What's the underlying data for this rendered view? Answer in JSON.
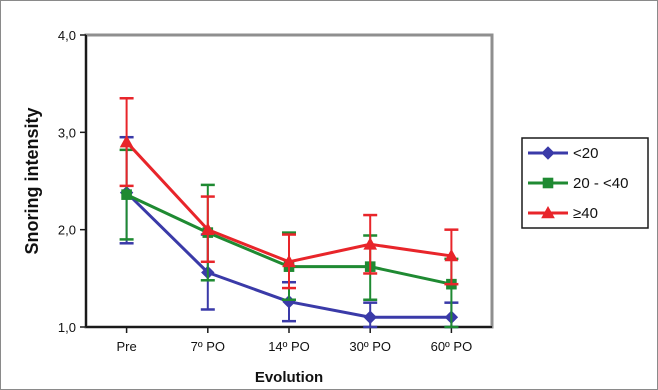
{
  "chart_data": {
    "type": "line",
    "xlabel": "Evolution",
    "ylabel": "Snoring intensity",
    "categories": [
      "Pre",
      "7º PO",
      "14º PO",
      "30º PO",
      "60º PO"
    ],
    "ylim": [
      1.0,
      4.0
    ],
    "yticks": [
      1.0,
      2.0,
      3.0,
      4.0
    ],
    "ytick_labels": [
      "1,0",
      "2,0",
      "3,0",
      "4,0"
    ],
    "grid": false,
    "legend_position": "right",
    "error_bars": true,
    "series": [
      {
        "name": "<20",
        "marker": "diamond",
        "color": "#3a3aa8",
        "values": [
          2.38,
          1.56,
          1.26,
          1.1,
          1.1
        ],
        "error_low": [
          1.86,
          1.18,
          1.06,
          1.0,
          1.0
        ],
        "error_high": [
          2.95,
          1.95,
          1.46,
          1.25,
          1.25
        ]
      },
      {
        "name": "20 - <40",
        "marker": "square",
        "color": "#1f8a32",
        "values": [
          2.36,
          1.97,
          1.62,
          1.62,
          1.44
        ],
        "error_low": [
          1.9,
          1.48,
          1.28,
          1.28,
          1.0
        ],
        "error_high": [
          2.82,
          2.46,
          1.97,
          1.94,
          1.7
        ]
      },
      {
        "name": "≥40",
        "marker": "triangle",
        "color": "#e8252a",
        "values": [
          2.9,
          2.0,
          1.67,
          1.85,
          1.73
        ],
        "error_low": [
          2.45,
          1.67,
          1.4,
          1.55,
          1.44
        ],
        "error_high": [
          3.35,
          2.34,
          1.95,
          2.15,
          2.0
        ]
      }
    ]
  }
}
